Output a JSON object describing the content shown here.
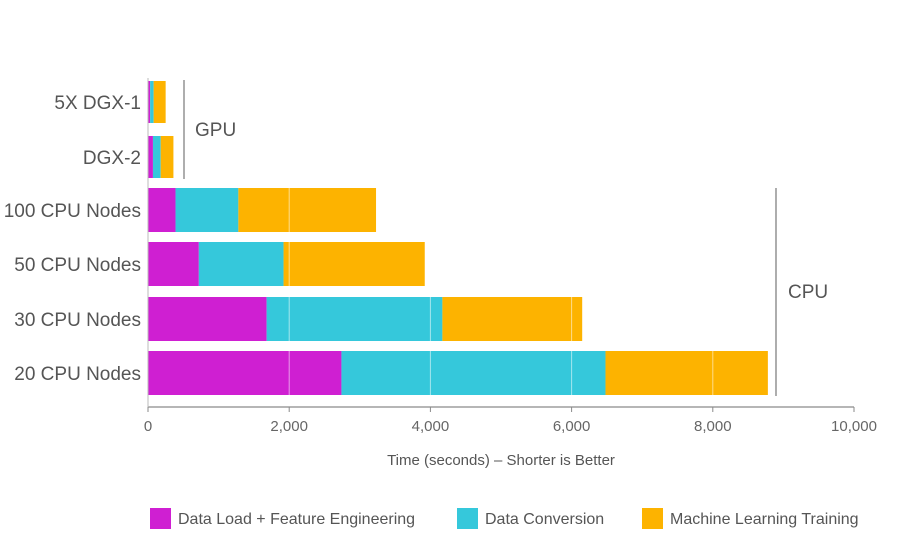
{
  "chart_data": {
    "type": "bar",
    "orientation": "horizontal",
    "stacked": true,
    "categories": [
      "5X DGX-1",
      "DGX-2",
      "100 CPU Nodes",
      "50 CPU Nodes",
      "30 CPU Nodes",
      "20 CPU Nodes"
    ],
    "series": [
      {
        "name": "Data Load + Feature Engineering",
        "color": "#cf1fd2",
        "values": [
          30,
          70,
          390,
          720,
          1680,
          2740
        ]
      },
      {
        "name": "Data Conversion",
        "color": "#35c8db",
        "values": [
          50,
          110,
          890,
          1200,
          2490,
          3740
        ]
      },
      {
        "name": "Machine Learning Training",
        "color": "#fdb300",
        "values": [
          170,
          180,
          1950,
          2000,
          1980,
          2300
        ]
      }
    ],
    "xlabel": "Time (seconds) – Shorter is Better",
    "xlim": [
      0,
      10000
    ],
    "xticks": [
      "0",
      "2,000",
      "4,000",
      "6,000",
      "8,000",
      "10,000"
    ],
    "xtick_values": [
      0,
      2000,
      4000,
      6000,
      8000,
      10000
    ],
    "groups": [
      {
        "label": "GPU",
        "categories": [
          "5X DGX-1",
          "DGX-2"
        ]
      },
      {
        "label": "CPU",
        "categories": [
          "100 CPU Nodes",
          "50 CPU Nodes",
          "30 CPU Nodes",
          "20 CPU Nodes"
        ]
      }
    ],
    "grid": "vertical",
    "grid_color": "#ffffff",
    "legend_position": "bottom"
  }
}
